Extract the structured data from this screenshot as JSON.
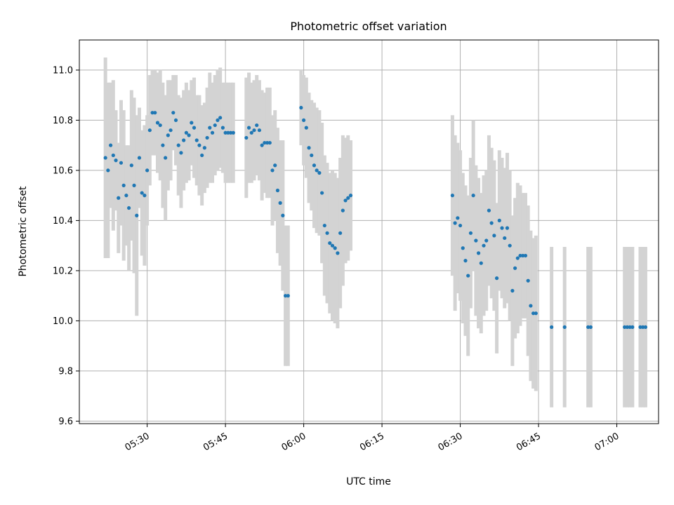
{
  "chart_data": {
    "type": "scatter",
    "title": "Photometric offset variation",
    "xlabel": "UTC time",
    "ylabel": "Photometric offset",
    "x_unit": "UTC time (HH:MM)",
    "xlim": [
      "05:17",
      "07:08"
    ],
    "ylim": [
      9.59,
      11.12
    ],
    "grid": true,
    "xticks": [
      "05:30",
      "05:45",
      "06:00",
      "06:15",
      "06:30",
      "06:45",
      "07:00"
    ],
    "yticks": [
      9.6,
      9.8,
      10.0,
      10.2,
      10.4,
      10.6,
      10.8,
      11.0
    ],
    "colors": {
      "points": "#1f77b4",
      "errorbars": "#d3d3d3",
      "grid": "#b0b0b0"
    },
    "series": [
      {
        "style": "points with vertical error bars",
        "points": [
          {
            "x": "05:22:00",
            "y": 10.65,
            "err": 0.4
          },
          {
            "x": "05:22:30",
            "y": 10.6,
            "err": 0.35
          },
          {
            "x": "05:23:00",
            "y": 10.7,
            "err": 0.25
          },
          {
            "x": "05:23:30",
            "y": 10.66,
            "err": 0.3
          },
          {
            "x": "05:24:00",
            "y": 10.64,
            "err": 0.2
          },
          {
            "x": "05:24:30",
            "y": 10.49,
            "err": 0.22
          },
          {
            "x": "05:25:00",
            "y": 10.63,
            "err": 0.25
          },
          {
            "x": "05:25:30",
            "y": 10.54,
            "err": 0.3
          },
          {
            "x": "05:26:00",
            "y": 10.5,
            "err": 0.2
          },
          {
            "x": "05:26:30",
            "y": 10.45,
            "err": 0.25
          },
          {
            "x": "05:27:00",
            "y": 10.62,
            "err": 0.3
          },
          {
            "x": "05:27:30",
            "y": 10.54,
            "err": 0.35
          },
          {
            "x": "05:28:00",
            "y": 10.42,
            "err": 0.4
          },
          {
            "x": "05:28:30",
            "y": 10.65,
            "err": 0.2
          },
          {
            "x": "05:29:00",
            "y": 10.51,
            "err": 0.25
          },
          {
            "x": "05:29:30",
            "y": 10.5,
            "err": 0.28
          },
          {
            "x": "05:30:00",
            "y": 10.6,
            "err": 0.22
          },
          {
            "x": "05:30:30",
            "y": 10.76,
            "err": 0.22
          },
          {
            "x": "05:31:00",
            "y": 10.83,
            "err": 0.17
          },
          {
            "x": "05:31:30",
            "y": 10.83,
            "err": 0.17
          },
          {
            "x": "05:32:00",
            "y": 10.79,
            "err": 0.2
          },
          {
            "x": "05:32:30",
            "y": 10.78,
            "err": 0.22
          },
          {
            "x": "05:33:00",
            "y": 10.7,
            "err": 0.25
          },
          {
            "x": "05:33:30",
            "y": 10.65,
            "err": 0.25
          },
          {
            "x": "05:34:00",
            "y": 10.74,
            "err": 0.22
          },
          {
            "x": "05:34:30",
            "y": 10.76,
            "err": 0.2
          },
          {
            "x": "05:35:00",
            "y": 10.83,
            "err": 0.15
          },
          {
            "x": "05:35:30",
            "y": 10.8,
            "err": 0.18
          },
          {
            "x": "05:36:00",
            "y": 10.7,
            "err": 0.2
          },
          {
            "x": "05:36:30",
            "y": 10.67,
            "err": 0.22
          },
          {
            "x": "05:37:00",
            "y": 10.72,
            "err": 0.2
          },
          {
            "x": "05:37:30",
            "y": 10.75,
            "err": 0.2
          },
          {
            "x": "05:38:00",
            "y": 10.74,
            "err": 0.18
          },
          {
            "x": "05:38:30",
            "y": 10.79,
            "err": 0.17
          },
          {
            "x": "05:39:00",
            "y": 10.77,
            "err": 0.2
          },
          {
            "x": "05:39:30",
            "y": 10.72,
            "err": 0.18
          },
          {
            "x": "05:40:00",
            "y": 10.7,
            "err": 0.2
          },
          {
            "x": "05:40:30",
            "y": 10.66,
            "err": 0.2
          },
          {
            "x": "05:41:00",
            "y": 10.69,
            "err": 0.18
          },
          {
            "x": "05:41:30",
            "y": 10.73,
            "err": 0.2
          },
          {
            "x": "05:42:00",
            "y": 10.77,
            "err": 0.22
          },
          {
            "x": "05:42:30",
            "y": 10.75,
            "err": 0.2
          },
          {
            "x": "05:43:00",
            "y": 10.78,
            "err": 0.2
          },
          {
            "x": "05:43:30",
            "y": 10.8,
            "err": 0.2
          },
          {
            "x": "05:44:00",
            "y": 10.81,
            "err": 0.2
          },
          {
            "x": "05:44:30",
            "y": 10.77,
            "err": 0.18
          },
          {
            "x": "05:45:00",
            "y": 10.75,
            "err": 0.2
          },
          {
            "x": "05:45:30",
            "y": 10.75,
            "err": 0.2
          },
          {
            "x": "05:46:00",
            "y": 10.75,
            "err": 0.2
          },
          {
            "x": "05:46:30",
            "y": 10.75,
            "err": 0.2
          },
          {
            "x": "05:49:00",
            "y": 10.73,
            "err": 0.24
          },
          {
            "x": "05:49:30",
            "y": 10.77,
            "err": 0.22
          },
          {
            "x": "05:50:00",
            "y": 10.75,
            "err": 0.2
          },
          {
            "x": "05:50:30",
            "y": 10.76,
            "err": 0.2
          },
          {
            "x": "05:51:00",
            "y": 10.78,
            "err": 0.2
          },
          {
            "x": "05:51:30",
            "y": 10.76,
            "err": 0.2
          },
          {
            "x": "05:52:00",
            "y": 10.7,
            "err": 0.22
          },
          {
            "x": "05:52:30",
            "y": 10.71,
            "err": 0.2
          },
          {
            "x": "05:53:00",
            "y": 10.71,
            "err": 0.22
          },
          {
            "x": "05:53:30",
            "y": 10.71,
            "err": 0.22
          },
          {
            "x": "05:54:00",
            "y": 10.6,
            "err": 0.22
          },
          {
            "x": "05:54:30",
            "y": 10.62,
            "err": 0.22
          },
          {
            "x": "05:55:00",
            "y": 10.52,
            "err": 0.25
          },
          {
            "x": "05:55:30",
            "y": 10.47,
            "err": 0.25
          },
          {
            "x": "05:56:00",
            "y": 10.42,
            "err": 0.3
          },
          {
            "x": "05:56:30",
            "y": 10.1,
            "err": 0.28
          },
          {
            "x": "05:57:00",
            "y": 10.1,
            "err": 0.28
          },
          {
            "x": "05:59:30",
            "y": 10.85,
            "err": 0.15
          },
          {
            "x": "06:00:00",
            "y": 10.8,
            "err": 0.18
          },
          {
            "x": "06:00:30",
            "y": 10.77,
            "err": 0.2
          },
          {
            "x": "06:01:00",
            "y": 10.69,
            "err": 0.22
          },
          {
            "x": "06:01:30",
            "y": 10.66,
            "err": 0.22
          },
          {
            "x": "06:02:00",
            "y": 10.62,
            "err": 0.25
          },
          {
            "x": "06:02:30",
            "y": 10.6,
            "err": 0.25
          },
          {
            "x": "06:03:00",
            "y": 10.59,
            "err": 0.25
          },
          {
            "x": "06:03:30",
            "y": 10.51,
            "err": 0.28
          },
          {
            "x": "06:04:00",
            "y": 10.38,
            "err": 0.28
          },
          {
            "x": "06:04:30",
            "y": 10.35,
            "err": 0.28
          },
          {
            "x": "06:05:00",
            "y": 10.31,
            "err": 0.28
          },
          {
            "x": "06:05:30",
            "y": 10.3,
            "err": 0.3
          },
          {
            "x": "06:06:00",
            "y": 10.29,
            "err": 0.3
          },
          {
            "x": "06:06:30",
            "y": 10.27,
            "err": 0.3
          },
          {
            "x": "06:07:00",
            "y": 10.35,
            "err": 0.3
          },
          {
            "x": "06:07:30",
            "y": 10.44,
            "err": 0.3
          },
          {
            "x": "06:08:00",
            "y": 10.48,
            "err": 0.25
          },
          {
            "x": "06:08:30",
            "y": 10.49,
            "err": 0.25
          },
          {
            "x": "06:09:00",
            "y": 10.5,
            "err": 0.22
          },
          {
            "x": "06:28:30",
            "y": 10.5,
            "err": 0.32
          },
          {
            "x": "06:29:00",
            "y": 10.39,
            "err": 0.35
          },
          {
            "x": "06:29:30",
            "y": 10.41,
            "err": 0.3
          },
          {
            "x": "06:30:00",
            "y": 10.38,
            "err": 0.3
          },
          {
            "x": "06:30:30",
            "y": 10.29,
            "err": 0.3
          },
          {
            "x": "06:31:00",
            "y": 10.24,
            "err": 0.3
          },
          {
            "x": "06:31:30",
            "y": 10.18,
            "err": 0.32
          },
          {
            "x": "06:32:00",
            "y": 10.35,
            "err": 0.3
          },
          {
            "x": "06:32:30",
            "y": 10.5,
            "err": 0.3
          },
          {
            "x": "06:33:00",
            "y": 10.32,
            "err": 0.3
          },
          {
            "x": "06:33:30",
            "y": 10.27,
            "err": 0.3
          },
          {
            "x": "06:34:00",
            "y": 10.23,
            "err": 0.28
          },
          {
            "x": "06:34:30",
            "y": 10.3,
            "err": 0.28
          },
          {
            "x": "06:35:00",
            "y": 10.32,
            "err": 0.28
          },
          {
            "x": "06:35:30",
            "y": 10.44,
            "err": 0.3
          },
          {
            "x": "06:36:00",
            "y": 10.39,
            "err": 0.3
          },
          {
            "x": "06:36:30",
            "y": 10.34,
            "err": 0.3
          },
          {
            "x": "06:37:00",
            "y": 10.17,
            "err": 0.3
          },
          {
            "x": "06:37:30",
            "y": 10.4,
            "err": 0.28
          },
          {
            "x": "06:38:00",
            "y": 10.37,
            "err": 0.28
          },
          {
            "x": "06:38:30",
            "y": 10.33,
            "err": 0.28
          },
          {
            "x": "06:39:00",
            "y": 10.37,
            "err": 0.3
          },
          {
            "x": "06:39:30",
            "y": 10.3,
            "err": 0.3
          },
          {
            "x": "06:40:00",
            "y": 10.12,
            "err": 0.3
          },
          {
            "x": "06:40:30",
            "y": 10.21,
            "err": 0.28
          },
          {
            "x": "06:41:00",
            "y": 10.25,
            "err": 0.3
          },
          {
            "x": "06:41:30",
            "y": 10.26,
            "err": 0.28
          },
          {
            "x": "06:42:00",
            "y": 10.26,
            "err": 0.25
          },
          {
            "x": "06:42:30",
            "y": 10.26,
            "err": 0.25
          },
          {
            "x": "06:43:00",
            "y": 10.16,
            "err": 0.3
          },
          {
            "x": "06:43:30",
            "y": 10.06,
            "err": 0.3
          },
          {
            "x": "06:44:00",
            "y": 10.03,
            "err": 0.3
          },
          {
            "x": "06:44:30",
            "y": 10.03,
            "err": 0.31
          },
          {
            "x": "06:47:30",
            "y": 9.975,
            "err": 0.32
          },
          {
            "x": "06:50:00",
            "y": 9.975,
            "err": 0.32
          },
          {
            "x": "06:54:30",
            "y": 9.975,
            "err": 0.32
          },
          {
            "x": "06:55:00",
            "y": 9.975,
            "err": 0.32
          },
          {
            "x": "07:01:30",
            "y": 9.975,
            "err": 0.32
          },
          {
            "x": "07:02:00",
            "y": 9.975,
            "err": 0.32
          },
          {
            "x": "07:02:30",
            "y": 9.975,
            "err": 0.32
          },
          {
            "x": "07:03:00",
            "y": 9.975,
            "err": 0.32
          },
          {
            "x": "07:04:30",
            "y": 9.975,
            "err": 0.32
          },
          {
            "x": "07:05:00",
            "y": 9.975,
            "err": 0.32
          },
          {
            "x": "07:05:30",
            "y": 9.975,
            "err": 0.32
          }
        ]
      }
    ]
  }
}
